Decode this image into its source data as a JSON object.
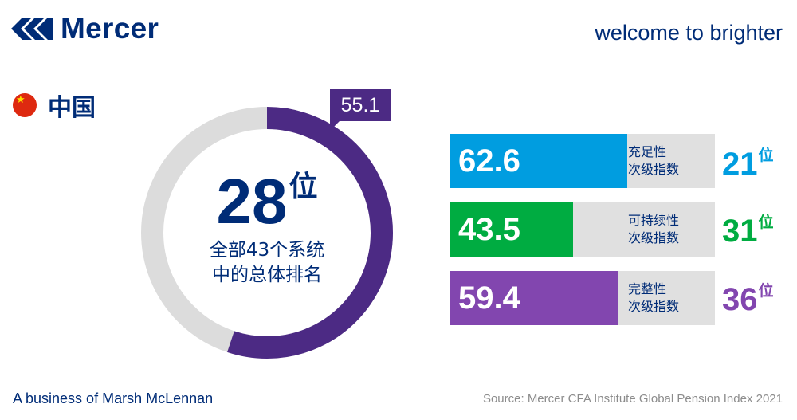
{
  "brand": {
    "name": "Mercer",
    "logo_icon": "mercer-logo-icon",
    "color": "#002c77"
  },
  "tagline": "welcome to brighter",
  "country": {
    "name": "中国",
    "flag_icon": "china-flag-icon"
  },
  "overall": {
    "score": "55.1",
    "score_fraction": 0.551,
    "rank": "28",
    "rank_suffix": "位",
    "desc_line1": "全部43个系统",
    "desc_line2": "中的总体排名",
    "ring_color": "#4c2a84",
    "track_color": "#dcdcdc"
  },
  "sub_indices": [
    {
      "value": "62.6",
      "score": 62.6,
      "label_line1": "充足性",
      "label_line2": "次级指数",
      "rank": "21",
      "rank_suffix": "位",
      "color": "#009de0"
    },
    {
      "value": "43.5",
      "score": 43.5,
      "label_line1": "可持续性",
      "label_line2": "次级指数",
      "rank": "31",
      "rank_suffix": "位",
      "color": "#00ac41"
    },
    {
      "value": "59.4",
      "score": 59.4,
      "label_line1": "完整性",
      "label_line2": "次级指数",
      "rank": "36",
      "rank_suffix": "位",
      "color": "#8246af"
    }
  ],
  "footer": {
    "left": "A business of Marsh McLennan",
    "source": "Source: Mercer CFA Institute Global Pension Index 2021"
  }
}
